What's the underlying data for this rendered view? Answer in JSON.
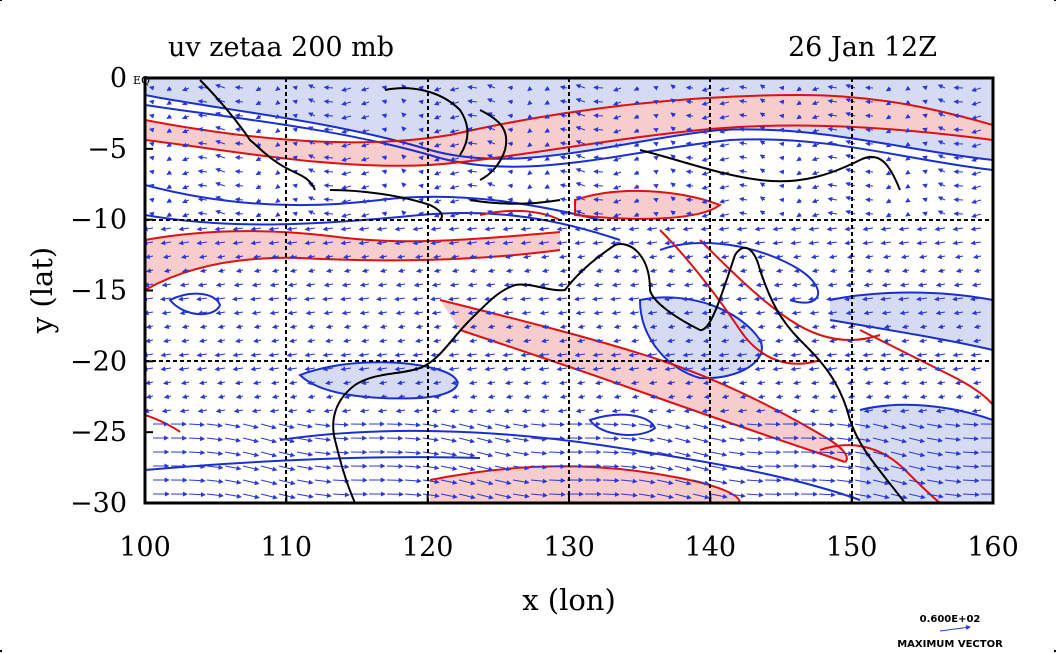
{
  "plot": {
    "title_left": "uv zetaa 200 mb",
    "title_right": "26 Jan 12Z",
    "eq_label": "EQ",
    "xlabel": "x (lon)",
    "ylabel": "y (lat)",
    "x_ticks": [
      "100",
      "110",
      "120",
      "130",
      "140",
      "150",
      "160"
    ],
    "y_ticks": [
      "0",
      "−5",
      "−10",
      "−15",
      "−20",
      "−25",
      "−30"
    ],
    "x_range": [
      100,
      160
    ],
    "y_range": [
      -30,
      0
    ]
  },
  "legend": {
    "vector_value": "0.600E+02",
    "vector_label": "MAXIMUM VECTOR"
  },
  "colors": {
    "positive_contour": "#e01010",
    "negative_contour": "#1a2fd0",
    "positive_fill": "#f6cccc",
    "negative_fill": "#d6dbf4",
    "vectors": "#2a38d8",
    "coast": "#000000"
  }
}
